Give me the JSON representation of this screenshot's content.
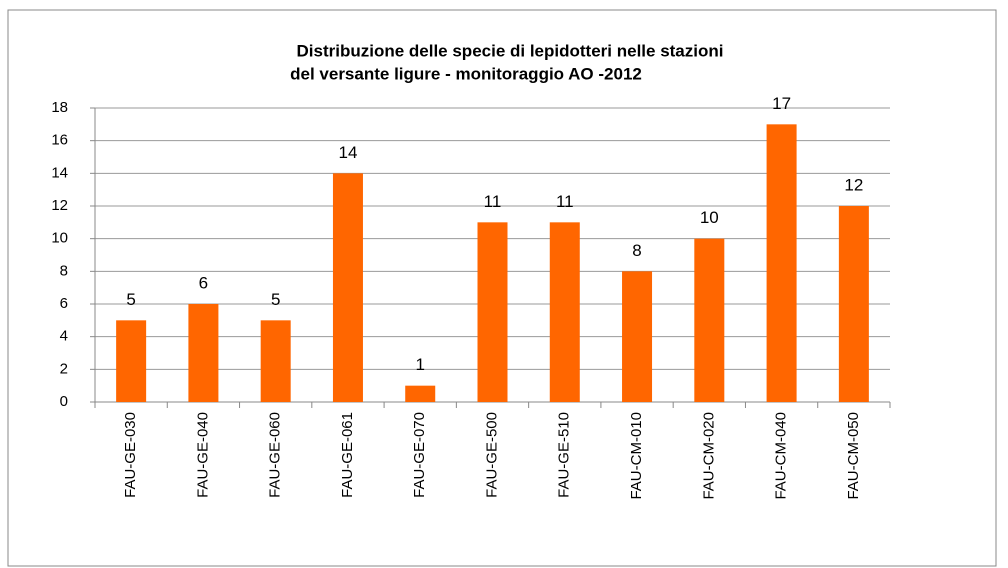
{
  "chart_data": {
    "type": "bar",
    "title": [
      "Distribuzione delle specie di lepidotteri nelle stazioni",
      "del versante ligure - monitoraggio AO -2012"
    ],
    "categories": [
      "FAU-GE-030",
      "FAU-GE-040",
      "FAU-GE-060",
      "FAU-GE-061",
      "FAU-GE-070",
      "FAU-GE-500",
      "FAU-GE-510",
      "FAU-CM-010",
      "FAU-CM-020",
      "FAU-CM-040",
      "FAU-CM-050"
    ],
    "values": [
      5,
      6,
      5,
      14,
      1,
      11,
      11,
      8,
      10,
      17,
      12
    ],
    "color": "#ff6600",
    "ylim": [
      0,
      18
    ],
    "yticks": [
      0,
      2,
      4,
      6,
      8,
      10,
      12,
      14,
      16,
      18
    ],
    "grid": true
  }
}
